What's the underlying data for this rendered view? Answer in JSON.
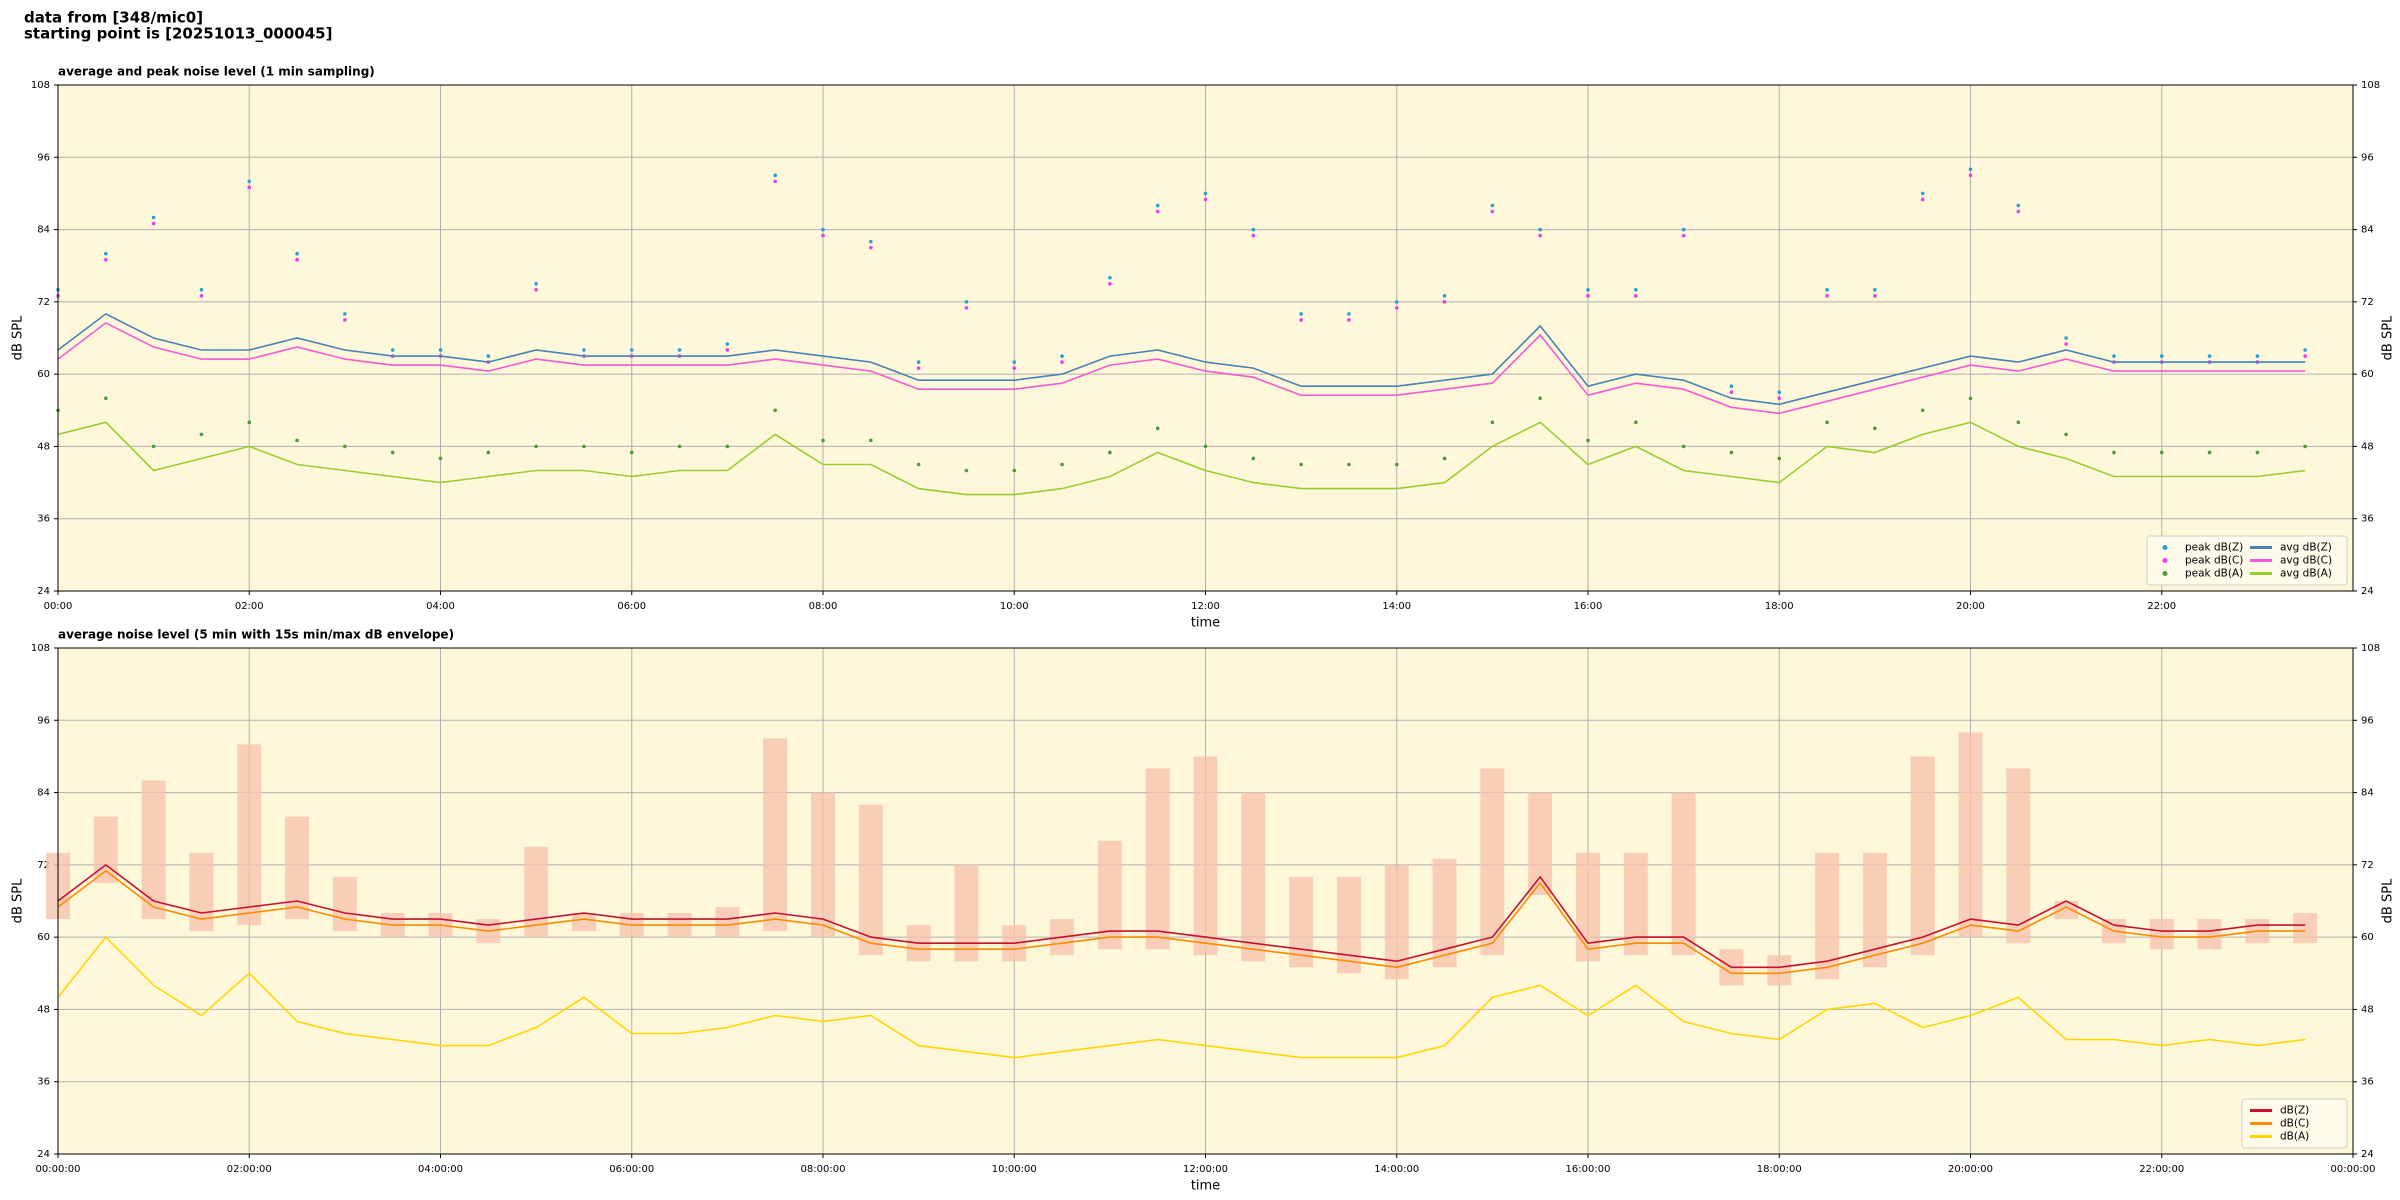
{
  "header": [
    "data from [348/mic0]",
    "starting point is [20251013_000045]"
  ],
  "chart_data": [
    {
      "type": "line",
      "title": "average and peak noise level (1 min sampling)",
      "xlabel": "time",
      "ylabel": "dB SPL",
      "background": "#fff7d9",
      "grid": true,
      "legend": "lower right",
      "legend_columns": 2,
      "xlim": [
        0,
        24
      ],
      "ylim": [
        24,
        108
      ],
      "xticks": [
        {
          "value": 0,
          "label": "00:00"
        },
        {
          "value": 2,
          "label": "02:00"
        },
        {
          "value": 4,
          "label": "04:00"
        },
        {
          "value": 6,
          "label": "06:00"
        },
        {
          "value": 8,
          "label": "08:00"
        },
        {
          "value": 10,
          "label": "10:00"
        },
        {
          "value": 12,
          "label": "12:00"
        },
        {
          "value": 14,
          "label": "14:00"
        },
        {
          "value": 16,
          "label": "16:00"
        },
        {
          "value": 18,
          "label": "18:00"
        },
        {
          "value": 20,
          "label": "20:00"
        },
        {
          "value": 22,
          "label": "22:00"
        }
      ],
      "yticks": [
        24,
        36,
        48,
        60,
        72,
        84,
        96,
        108
      ],
      "x": [
        0,
        0.5,
        1,
        1.5,
        2,
        2.5,
        3,
        3.5,
        4,
        4.5,
        5,
        5.5,
        6,
        6.5,
        7,
        7.5,
        8,
        8.5,
        9,
        9.5,
        10,
        10.5,
        11,
        11.5,
        12,
        12.5,
        13,
        13.5,
        14,
        14.5,
        15,
        15.5,
        16,
        16.5,
        17,
        17.5,
        18,
        18.5,
        19,
        19.5,
        20,
        20.5,
        21,
        21.5,
        22,
        22.5,
        23,
        23.5
      ],
      "series": [
        {
          "name": "peak dB(Z)",
          "type": "scatter",
          "color": "#2a9fd6",
          "values": [
            74,
            80,
            86,
            74,
            92,
            80,
            70,
            64,
            64,
            63,
            75,
            64,
            64,
            64,
            65,
            93,
            84,
            82,
            62,
            72,
            62,
            63,
            76,
            88,
            90,
            84,
            70,
            70,
            72,
            73,
            88,
            84,
            74,
            74,
            84,
            58,
            57,
            74,
            74,
            90,
            94,
            88,
            66,
            63,
            63,
            63,
            63,
            64
          ]
        },
        {
          "name": "peak dB(C)",
          "type": "scatter",
          "color": "#e83fe8",
          "values": [
            73,
            79,
            85,
            73,
            91,
            79,
            69,
            63,
            63,
            62,
            74,
            63,
            63,
            63,
            64,
            92,
            83,
            81,
            61,
            71,
            61,
            62,
            75,
            87,
            89,
            83,
            69,
            69,
            71,
            72,
            87,
            83,
            73,
            73,
            83,
            57,
            56,
            73,
            73,
            89,
            93,
            87,
            65,
            62,
            62,
            62,
            62,
            63
          ]
        },
        {
          "name": "peak dB(A)",
          "type": "scatter",
          "color": "#4c9a3c",
          "values": [
            54,
            56,
            48,
            50,
            52,
            49,
            48,
            47,
            46,
            47,
            48,
            48,
            47,
            48,
            48,
            54,
            49,
            49,
            45,
            44,
            44,
            45,
            47,
            51,
            48,
            46,
            45,
            45,
            45,
            46,
            52,
            56,
            49,
            52,
            48,
            47,
            46,
            52,
            51,
            54,
            56,
            52,
            50,
            47,
            47,
            47,
            47,
            48
          ]
        },
        {
          "name": "avg dB(Z)",
          "type": "line",
          "color": "#4682b4",
          "values": [
            64,
            70,
            66,
            64,
            64,
            66,
            64,
            63,
            63,
            62,
            64,
            63,
            63,
            63,
            63,
            64,
            63,
            62,
            59,
            59,
            59,
            60,
            63,
            64,
            62,
            61,
            58,
            58,
            58,
            59,
            60,
            68,
            58,
            60,
            59,
            56,
            55,
            57,
            59,
            61,
            63,
            62,
            64,
            62,
            62,
            62,
            62,
            62
          ]
        },
        {
          "name": "avg dB(C)",
          "type": "line",
          "color": "#f25ad6",
          "values": [
            62.5,
            68.5,
            64.5,
            62.5,
            62.5,
            64.5,
            62.5,
            61.5,
            61.5,
            60.5,
            62.5,
            61.5,
            61.5,
            61.5,
            61.5,
            62.5,
            61.5,
            60.5,
            57.5,
            57.5,
            57.5,
            58.5,
            61.5,
            62.5,
            60.5,
            59.5,
            56.5,
            56.5,
            56.5,
            57.5,
            58.5,
            66.5,
            56.5,
            58.5,
            57.5,
            54.5,
            53.5,
            55.5,
            57.5,
            59.5,
            61.5,
            60.5,
            62.5,
            60.5,
            60.5,
            60.5,
            60.5,
            60.5
          ]
        },
        {
          "name": "avg dB(A)",
          "type": "line",
          "color": "#9acd32",
          "values": [
            50,
            52,
            44,
            46,
            48,
            45,
            44,
            43,
            42,
            43,
            44,
            44,
            43,
            44,
            44,
            50,
            45,
            45,
            41,
            40,
            40,
            41,
            43,
            47,
            44,
            42,
            41,
            41,
            41,
            42,
            48,
            52,
            45,
            48,
            44,
            43,
            42,
            48,
            47,
            50,
            52,
            48,
            46,
            43,
            43,
            43,
            43,
            44
          ]
        }
      ]
    },
    {
      "type": "line",
      "title": "average noise level (5 min with 15s min/max dB envelope)",
      "xlabel": "time",
      "ylabel": "dB SPL",
      "background": "#fff7d9",
      "grid": true,
      "legend": "lower right",
      "legend_columns": 1,
      "xlim": [
        0,
        24
      ],
      "ylim": [
        24,
        108
      ],
      "xticks": [
        {
          "value": 0,
          "label": "00:00:00"
        },
        {
          "value": 2,
          "label": "02:00:00"
        },
        {
          "value": 4,
          "label": "04:00:00"
        },
        {
          "value": 6,
          "label": "06:00:00"
        },
        {
          "value": 8,
          "label": "08:00:00"
        },
        {
          "value": 10,
          "label": "10:00:00"
        },
        {
          "value": 12,
          "label": "12:00:00"
        },
        {
          "value": 14,
          "label": "14:00:00"
        },
        {
          "value": 16,
          "label": "16:00:00"
        },
        {
          "value": 18,
          "label": "18:00:00"
        },
        {
          "value": 20,
          "label": "20:00:00"
        },
        {
          "value": 22,
          "label": "22:00:00"
        },
        {
          "value": 24,
          "label": "00:00:00"
        }
      ],
      "yticks": [
        24,
        36,
        48,
        60,
        72,
        84,
        96,
        108
      ],
      "x": [
        0,
        0.5,
        1,
        1.5,
        2,
        2.5,
        3,
        3.5,
        4,
        4.5,
        5,
        5.5,
        6,
        6.5,
        7,
        7.5,
        8,
        8.5,
        9,
        9.5,
        10,
        10.5,
        11,
        11.5,
        12,
        12.5,
        13,
        13.5,
        14,
        14.5,
        15,
        15.5,
        16,
        16.5,
        17,
        17.5,
        18,
        18.5,
        19,
        19.5,
        20,
        20.5,
        21,
        21.5,
        22,
        22.5,
        23,
        23.5
      ],
      "envelope": {
        "color": "#f6c3ad",
        "upper": [
          74,
          80,
          86,
          74,
          92,
          80,
          70,
          64,
          64,
          63,
          75,
          64,
          64,
          64,
          65,
          93,
          84,
          82,
          62,
          72,
          62,
          63,
          76,
          88,
          90,
          84,
          70,
          70,
          72,
          73,
          88,
          84,
          74,
          74,
          84,
          58,
          57,
          74,
          74,
          90,
          94,
          88,
          66,
          63,
          63,
          63,
          63,
          64
        ],
        "lower": [
          63,
          69,
          63,
          61,
          62,
          63,
          61,
          60,
          60,
          59,
          60,
          61,
          60,
          60,
          60,
          61,
          60,
          57,
          56,
          56,
          56,
          57,
          58,
          58,
          57,
          56,
          55,
          54,
          53,
          55,
          57,
          67,
          56,
          57,
          57,
          52,
          52,
          53,
          55,
          57,
          60,
          59,
          63,
          59,
          58,
          58,
          59,
          59
        ]
      },
      "series": [
        {
          "name": "dB(Z)",
          "type": "line",
          "color": "#c8102e",
          "values": [
            66,
            72,
            66,
            64,
            65,
            66,
            64,
            63,
            63,
            62,
            63,
            64,
            63,
            63,
            63,
            64,
            63,
            60,
            59,
            59,
            59,
            60,
            61,
            61,
            60,
            59,
            58,
            57,
            56,
            58,
            60,
            70,
            59,
            60,
            60,
            55,
            55,
            56,
            58,
            60,
            63,
            62,
            66,
            62,
            61,
            61,
            62,
            62
          ]
        },
        {
          "name": "dB(C)",
          "type": "line",
          "color": "#ff8c00",
          "values": [
            65,
            71,
            65,
            63,
            64,
            65,
            63,
            62,
            62,
            61,
            62,
            63,
            62,
            62,
            62,
            63,
            62,
            59,
            58,
            58,
            58,
            59,
            60,
            60,
            59,
            58,
            57,
            56,
            55,
            57,
            59,
            69,
            58,
            59,
            59,
            54,
            54,
            55,
            57,
            59,
            62,
            61,
            65,
            61,
            60,
            60,
            61,
            61
          ]
        },
        {
          "name": "dB(A)",
          "type": "line",
          "color": "#ffd700",
          "values": [
            50,
            60,
            52,
            47,
            54,
            46,
            44,
            43,
            42,
            42,
            45,
            50,
            44,
            44,
            45,
            47,
            46,
            47,
            42,
            41,
            40,
            41,
            42,
            43,
            42,
            41,
            40,
            40,
            40,
            42,
            50,
            52,
            47,
            52,
            46,
            44,
            43,
            48,
            49,
            45,
            47,
            50,
            43,
            43,
            42,
            43,
            42,
            43
          ]
        }
      ]
    }
  ]
}
